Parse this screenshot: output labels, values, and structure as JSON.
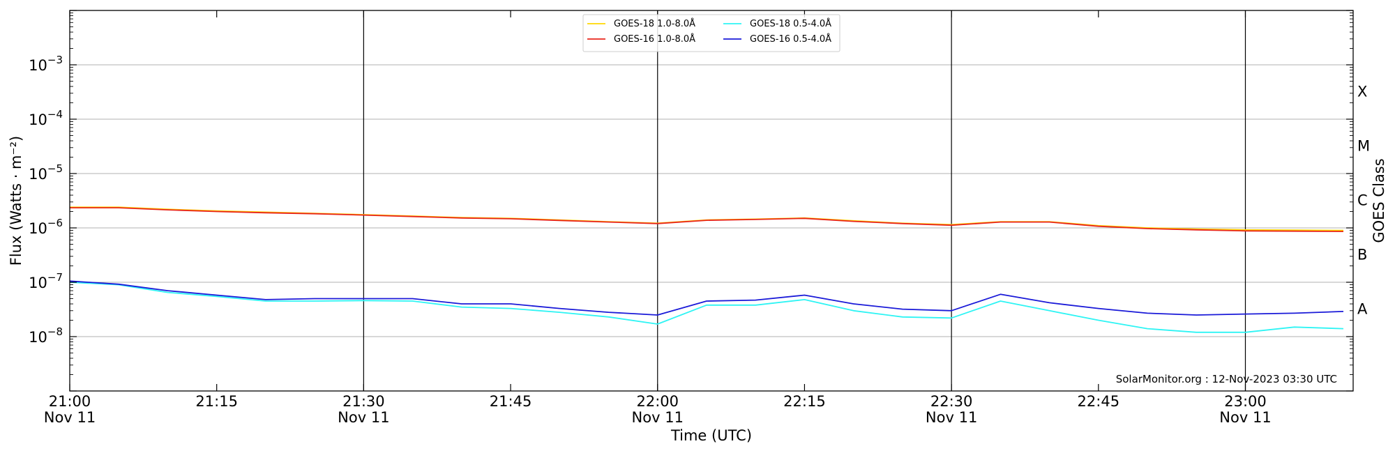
{
  "chart_data": {
    "type": "line",
    "xlabel": "Time (UTC)",
    "ylabel": "Flux (Watts · m⁻²)",
    "y_scale": "log",
    "ylim": [
      1e-09,
      0.01
    ],
    "y_ticks": [
      {
        "value": 1e-08,
        "base": "10",
        "exp": "−8"
      },
      {
        "value": 1e-07,
        "base": "10",
        "exp": "−7"
      },
      {
        "value": 1e-06,
        "base": "10",
        "exp": "−6"
      },
      {
        "value": 1e-05,
        "base": "10",
        "exp": "−5"
      },
      {
        "value": 0.0001,
        "base": "10",
        "exp": "−4"
      },
      {
        "value": 0.001,
        "base": "10",
        "exp": "−3"
      }
    ],
    "xlim": [
      "21:00",
      "23:11"
    ],
    "x_ticks": [
      {
        "time": "21:00",
        "label": "21:00",
        "sublabel": "Nov 11",
        "major": true
      },
      {
        "time": "21:15",
        "label": "21:15",
        "sublabel": "",
        "major": false
      },
      {
        "time": "21:30",
        "label": "21:30",
        "sublabel": "Nov 11",
        "major": true
      },
      {
        "time": "21:45",
        "label": "21:45",
        "sublabel": "",
        "major": false
      },
      {
        "time": "22:00",
        "label": "22:00",
        "sublabel": "Nov 11",
        "major": true
      },
      {
        "time": "22:15",
        "label": "22:15",
        "sublabel": "",
        "major": false
      },
      {
        "time": "22:30",
        "label": "22:30",
        "sublabel": "Nov 11",
        "major": true
      },
      {
        "time": "22:45",
        "label": "22:45",
        "sublabel": "",
        "major": false
      },
      {
        "time": "23:00",
        "label": "23:00",
        "sublabel": "Nov 11",
        "major": true
      }
    ],
    "right_axis": {
      "label": "GOES Class",
      "classes": [
        {
          "label": "A",
          "value": 1e-08
        },
        {
          "label": "B",
          "value": 1e-07
        },
        {
          "label": "C",
          "value": 1e-06
        },
        {
          "label": "M",
          "value": 1e-05
        },
        {
          "label": "X",
          "value": 0.0001
        }
      ]
    },
    "grid": "horizontal at decades; vertical lines at major ticks",
    "legend_position": "top-center",
    "series": [
      {
        "name": "GOES-18 1.0-8.0Å",
        "color": "#ffd700",
        "x": [
          "21:00",
          "21:05",
          "21:10",
          "21:15",
          "21:20",
          "21:25",
          "21:30",
          "21:35",
          "21:40",
          "21:45",
          "21:50",
          "21:55",
          "22:00",
          "22:05",
          "22:10",
          "22:15",
          "22:20",
          "22:25",
          "22:30",
          "22:35",
          "22:40",
          "22:45",
          "22:50",
          "22:55",
          "23:00",
          "23:05",
          "23:10"
        ],
        "values": [
          2.4e-06,
          2.4e-06,
          2.2e-06,
          2.05e-06,
          1.95e-06,
          1.85e-06,
          1.75e-06,
          1.65e-06,
          1.55e-06,
          1.5e-06,
          1.4e-06,
          1.3e-06,
          1.22e-06,
          1.4e-06,
          1.45e-06,
          1.52e-06,
          1.35e-06,
          1.22e-06,
          1.15e-06,
          1.3e-06,
          1.3e-06,
          1.1e-06,
          1e-06,
          9.5e-07,
          9.2e-07,
          9.1e-07,
          9e-07
        ]
      },
      {
        "name": "GOES-16 1.0-8.0Å",
        "color": "#e8261c",
        "x": [
          "21:00",
          "21:05",
          "21:10",
          "21:15",
          "21:20",
          "21:25",
          "21:30",
          "21:35",
          "21:40",
          "21:45",
          "21:50",
          "21:55",
          "22:00",
          "22:05",
          "22:10",
          "22:15",
          "22:20",
          "22:25",
          "22:30",
          "22:35",
          "22:40",
          "22:45",
          "22:50",
          "22:55",
          "23:00",
          "23:05",
          "23:10"
        ],
        "values": [
          2.35e-06,
          2.35e-06,
          2.15e-06,
          2e-06,
          1.9e-06,
          1.82e-06,
          1.72e-06,
          1.62e-06,
          1.52e-06,
          1.47e-06,
          1.37e-06,
          1.28e-06,
          1.2e-06,
          1.38e-06,
          1.43e-06,
          1.5e-06,
          1.32e-06,
          1.2e-06,
          1.12e-06,
          1.28e-06,
          1.28e-06,
          1.07e-06,
          9.7e-07,
          9.2e-07,
          8.8e-07,
          8.7e-07,
          8.6e-07
        ]
      },
      {
        "name": "GOES-18 0.5-4.0Å",
        "color": "#2ef4f4",
        "x": [
          "21:00",
          "21:05",
          "21:10",
          "21:15",
          "21:20",
          "21:25",
          "21:30",
          "21:35",
          "21:40",
          "21:45",
          "21:50",
          "21:55",
          "22:00",
          "22:05",
          "22:10",
          "22:15",
          "22:20",
          "22:25",
          "22:30",
          "22:35",
          "22:40",
          "22:45",
          "22:50",
          "22:55",
          "23:00",
          "23:05",
          "23:10"
        ],
        "values": [
          1e-07,
          9e-08,
          6.5e-08,
          5.5e-08,
          4.5e-08,
          4.5e-08,
          4.6e-08,
          4.5e-08,
          3.5e-08,
          3.3e-08,
          2.8e-08,
          2.3e-08,
          1.7e-08,
          3.8e-08,
          3.8e-08,
          4.8e-08,
          3e-08,
          2.3e-08,
          2.2e-08,
          4.5e-08,
          3e-08,
          2e-08,
          1.4e-08,
          1.2e-08,
          1.2e-08,
          1.5e-08,
          1.4e-08
        ]
      },
      {
        "name": "GOES-16 0.5-4.0Å",
        "color": "#1a1ad8",
        "x": [
          "21:00",
          "21:05",
          "21:10",
          "21:15",
          "21:20",
          "21:25",
          "21:30",
          "21:35",
          "21:40",
          "21:45",
          "21:50",
          "21:55",
          "22:00",
          "22:05",
          "22:10",
          "22:15",
          "22:20",
          "22:25",
          "22:30",
          "22:35",
          "22:40",
          "22:45",
          "22:50",
          "22:55",
          "23:00",
          "23:05",
          "23:10"
        ],
        "values": [
          1.05e-07,
          9.2e-08,
          7e-08,
          5.8e-08,
          4.8e-08,
          5e-08,
          5e-08,
          5e-08,
          4e-08,
          4e-08,
          3.3e-08,
          2.8e-08,
          2.5e-08,
          4.5e-08,
          4.7e-08,
          5.8e-08,
          4e-08,
          3.2e-08,
          3e-08,
          6e-08,
          4.2e-08,
          3.3e-08,
          2.7e-08,
          2.5e-08,
          2.6e-08,
          2.7e-08,
          2.9e-08
        ]
      }
    ],
    "annotation": "SolarMonitor.org : 12-Nov-2023 03:30 UTC"
  }
}
